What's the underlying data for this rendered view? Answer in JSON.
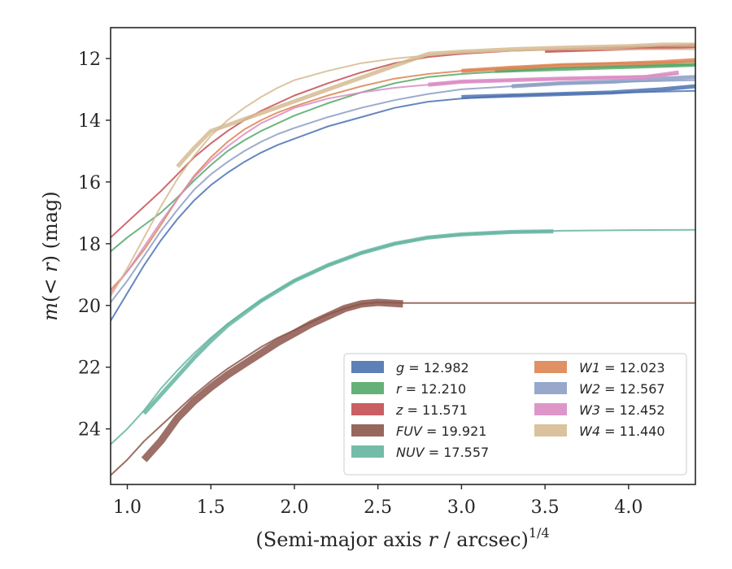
{
  "chart_data": {
    "type": "line",
    "xlabel": "(Semi-major axis r / arcsec)^1/4",
    "xlabel_parts": {
      "main": "(Semi-major axis ",
      "var": "r",
      "rest": " / arcsec)",
      "sup": "1/4"
    },
    "ylabel": "m(< r) (mag)",
    "ylabel_parts": {
      "m": "m",
      "open": "(",
      "lt": "< ",
      "r": "r",
      "close": ")",
      "unit": " (mag)"
    },
    "xlim": [
      0.9,
      4.4
    ],
    "ylim": [
      25.8,
      11.0
    ],
    "y_inverted": true,
    "xticks": [
      1.0,
      1.5,
      2.0,
      2.5,
      3.0,
      3.5,
      4.0
    ],
    "xtick_labels": [
      "1.0",
      "1.5",
      "2.0",
      "2.5",
      "3.0",
      "3.5",
      "4.0"
    ],
    "yticks": [
      12,
      14,
      16,
      18,
      20,
      22,
      24
    ],
    "ytick_labels": [
      "12",
      "14",
      "16",
      "18",
      "20",
      "22",
      "24"
    ],
    "grid": false,
    "legend_position": "lower-right",
    "series": [
      {
        "band": "g",
        "value": "12.982",
        "color": "#4c72b0",
        "points": [
          [
            0.9,
            20.5
          ],
          [
            1.0,
            19.6
          ],
          [
            1.1,
            18.7
          ],
          [
            1.2,
            17.9
          ],
          [
            1.3,
            17.2
          ],
          [
            1.4,
            16.6
          ],
          [
            1.5,
            16.1
          ],
          [
            1.6,
            15.7
          ],
          [
            1.7,
            15.35
          ],
          [
            1.8,
            15.05
          ],
          [
            1.9,
            14.8
          ],
          [
            2.0,
            14.6
          ],
          [
            2.2,
            14.2
          ],
          [
            2.4,
            13.9
          ],
          [
            2.6,
            13.6
          ],
          [
            2.8,
            13.4
          ],
          [
            3.0,
            13.3
          ],
          [
            3.3,
            13.2
          ],
          [
            3.6,
            13.15
          ],
          [
            4.0,
            13.1
          ],
          [
            4.4,
            13.05
          ]
        ],
        "band_points": [
          [
            3.0,
            13.25
          ],
          [
            3.3,
            13.2
          ],
          [
            3.6,
            13.15
          ],
          [
            3.9,
            13.1
          ],
          [
            4.2,
            13.0
          ],
          [
            4.4,
            12.9
          ]
        ]
      },
      {
        "band": "r",
        "value": "12.210",
        "color": "#55a868",
        "points": [
          [
            0.9,
            18.25
          ],
          [
            1.0,
            17.8
          ],
          [
            1.1,
            17.4
          ],
          [
            1.2,
            17.0
          ],
          [
            1.3,
            16.5
          ],
          [
            1.4,
            15.95
          ],
          [
            1.5,
            15.45
          ],
          [
            1.6,
            15.0
          ],
          [
            1.7,
            14.65
          ],
          [
            1.8,
            14.35
          ],
          [
            1.9,
            14.1
          ],
          [
            2.0,
            13.85
          ],
          [
            2.2,
            13.45
          ],
          [
            2.4,
            13.1
          ],
          [
            2.6,
            12.8
          ],
          [
            2.8,
            12.6
          ],
          [
            3.0,
            12.5
          ],
          [
            3.3,
            12.4
          ],
          [
            3.6,
            12.3
          ],
          [
            4.0,
            12.25
          ],
          [
            4.4,
            12.2
          ]
        ],
        "band_points": [
          [
            3.2,
            12.4
          ],
          [
            3.5,
            12.35
          ],
          [
            3.8,
            12.3
          ],
          [
            4.1,
            12.25
          ],
          [
            4.4,
            12.2
          ]
        ]
      },
      {
        "band": "z",
        "value": "11.571",
        "color": "#c44e52",
        "points": [
          [
            0.9,
            17.8
          ],
          [
            1.0,
            17.3
          ],
          [
            1.1,
            16.8
          ],
          [
            1.2,
            16.3
          ],
          [
            1.3,
            15.75
          ],
          [
            1.4,
            15.2
          ],
          [
            1.5,
            14.75
          ],
          [
            1.6,
            14.35
          ],
          [
            1.7,
            14.0
          ],
          [
            1.8,
            13.7
          ],
          [
            1.9,
            13.45
          ],
          [
            2.0,
            13.2
          ],
          [
            2.2,
            12.8
          ],
          [
            2.4,
            12.45
          ],
          [
            2.6,
            12.15
          ],
          [
            2.8,
            11.95
          ],
          [
            3.0,
            11.85
          ],
          [
            3.3,
            11.75
          ],
          [
            3.6,
            11.7
          ],
          [
            4.0,
            11.65
          ],
          [
            4.4,
            11.55
          ]
        ],
        "band_points": [
          [
            3.5,
            11.75
          ],
          [
            3.8,
            11.7
          ],
          [
            4.1,
            11.65
          ],
          [
            4.4,
            11.6
          ]
        ]
      },
      {
        "band": "FUV",
        "value": "19.921",
        "color": "#8c564b",
        "points": [
          [
            0.9,
            25.5
          ],
          [
            1.0,
            25.0
          ],
          [
            1.1,
            24.4
          ],
          [
            1.2,
            23.9
          ],
          [
            1.3,
            23.4
          ],
          [
            1.4,
            22.9
          ],
          [
            1.5,
            22.45
          ],
          [
            1.6,
            22.05
          ],
          [
            1.7,
            21.7
          ],
          [
            1.8,
            21.35
          ],
          [
            1.9,
            21.05
          ],
          [
            2.0,
            20.8
          ],
          [
            2.1,
            20.55
          ],
          [
            2.2,
            20.3
          ],
          [
            2.3,
            20.1
          ],
          [
            2.4,
            19.95
          ],
          [
            2.5,
            19.9
          ],
          [
            2.65,
            19.92
          ],
          [
            3.0,
            19.92
          ],
          [
            3.5,
            19.92
          ],
          [
            4.0,
            19.92
          ],
          [
            4.4,
            19.92
          ]
        ],
        "band_points": [
          [
            1.1,
            25.0
          ],
          [
            1.2,
            24.4
          ],
          [
            1.3,
            23.65
          ],
          [
            1.4,
            23.1
          ],
          [
            1.5,
            22.65
          ],
          [
            1.6,
            22.25
          ],
          [
            1.7,
            21.9
          ],
          [
            1.8,
            21.55
          ],
          [
            1.9,
            21.2
          ],
          [
            2.0,
            20.9
          ],
          [
            2.1,
            20.6
          ],
          [
            2.2,
            20.35
          ],
          [
            2.3,
            20.1
          ],
          [
            2.4,
            19.95
          ],
          [
            2.5,
            19.9
          ],
          [
            2.65,
            19.95
          ]
        ]
      },
      {
        "band": "NUV",
        "value": "17.557",
        "color": "#64b5a0",
        "points": [
          [
            0.9,
            24.5
          ],
          [
            1.0,
            24.0
          ],
          [
            1.1,
            23.4
          ],
          [
            1.2,
            22.7
          ],
          [
            1.3,
            22.1
          ],
          [
            1.4,
            21.55
          ],
          [
            1.5,
            21.05
          ],
          [
            1.6,
            20.6
          ],
          [
            1.7,
            20.2
          ],
          [
            1.8,
            19.85
          ],
          [
            1.9,
            19.5
          ],
          [
            2.0,
            19.2
          ],
          [
            2.2,
            18.7
          ],
          [
            2.4,
            18.3
          ],
          [
            2.6,
            18.0
          ],
          [
            2.8,
            17.8
          ],
          [
            3.0,
            17.7
          ],
          [
            3.3,
            17.62
          ],
          [
            3.6,
            17.58
          ],
          [
            4.0,
            17.56
          ],
          [
            4.4,
            17.55
          ]
        ],
        "band_points": [
          [
            1.1,
            23.5
          ],
          [
            1.2,
            22.9
          ],
          [
            1.3,
            22.3
          ],
          [
            1.4,
            21.7
          ],
          [
            1.5,
            21.15
          ],
          [
            1.6,
            20.65
          ],
          [
            1.8,
            19.85
          ],
          [
            2.0,
            19.2
          ],
          [
            2.2,
            18.7
          ],
          [
            2.4,
            18.3
          ],
          [
            2.6,
            18.0
          ],
          [
            2.8,
            17.8
          ],
          [
            3.0,
            17.7
          ],
          [
            3.3,
            17.62
          ],
          [
            3.55,
            17.6
          ]
        ]
      },
      {
        "band": "W1",
        "value": "12.023",
        "color": "#dd8452",
        "points": [
          [
            0.9,
            19.5
          ],
          [
            1.0,
            18.9
          ],
          [
            1.1,
            18.2
          ],
          [
            1.2,
            17.4
          ],
          [
            1.3,
            16.55
          ],
          [
            1.4,
            15.8
          ],
          [
            1.5,
            15.2
          ],
          [
            1.6,
            14.7
          ],
          [
            1.7,
            14.3
          ],
          [
            1.8,
            14.0
          ],
          [
            1.9,
            13.75
          ],
          [
            2.0,
            13.55
          ],
          [
            2.2,
            13.2
          ],
          [
            2.4,
            12.9
          ],
          [
            2.6,
            12.65
          ],
          [
            2.8,
            12.5
          ],
          [
            3.0,
            12.4
          ],
          [
            3.3,
            12.3
          ],
          [
            3.6,
            12.2
          ],
          [
            4.0,
            12.15
          ],
          [
            4.4,
            12.1
          ]
        ],
        "band_points": [
          [
            3.0,
            12.4
          ],
          [
            3.3,
            12.3
          ],
          [
            3.6,
            12.22
          ],
          [
            3.9,
            12.18
          ],
          [
            4.2,
            12.12
          ],
          [
            4.4,
            12.05
          ]
        ]
      },
      {
        "band": "W2",
        "value": "12.567",
        "color": "#8c9ec4",
        "points": [
          [
            0.9,
            19.9
          ],
          [
            1.0,
            19.2
          ],
          [
            1.1,
            18.4
          ],
          [
            1.2,
            17.6
          ],
          [
            1.3,
            16.9
          ],
          [
            1.4,
            16.25
          ],
          [
            1.5,
            15.75
          ],
          [
            1.6,
            15.35
          ],
          [
            1.7,
            15.0
          ],
          [
            1.8,
            14.7
          ],
          [
            1.9,
            14.45
          ],
          [
            2.0,
            14.25
          ],
          [
            2.2,
            13.9
          ],
          [
            2.4,
            13.6
          ],
          [
            2.6,
            13.35
          ],
          [
            2.8,
            13.15
          ],
          [
            3.0,
            13.0
          ],
          [
            3.3,
            12.9
          ],
          [
            3.6,
            12.8
          ],
          [
            4.0,
            12.75
          ],
          [
            4.4,
            12.7
          ]
        ],
        "band_points": [
          [
            3.3,
            12.9
          ],
          [
            3.6,
            12.8
          ],
          [
            3.9,
            12.75
          ],
          [
            4.2,
            12.65
          ],
          [
            4.4,
            12.6
          ]
        ]
      },
      {
        "band": "W3",
        "value": "12.452",
        "color": "#da8bc3",
        "points": [
          [
            0.9,
            19.6
          ],
          [
            1.0,
            18.9
          ],
          [
            1.1,
            18.1
          ],
          [
            1.2,
            17.3
          ],
          [
            1.3,
            16.55
          ],
          [
            1.4,
            15.85
          ],
          [
            1.5,
            15.3
          ],
          [
            1.6,
            14.85
          ],
          [
            1.7,
            14.45
          ],
          [
            1.8,
            14.1
          ],
          [
            1.9,
            13.85
          ],
          [
            2.0,
            13.6
          ],
          [
            2.2,
            13.3
          ],
          [
            2.4,
            13.1
          ],
          [
            2.6,
            12.95
          ],
          [
            2.8,
            12.85
          ],
          [
            3.0,
            12.75
          ],
          [
            3.3,
            12.7
          ],
          [
            3.6,
            12.65
          ],
          [
            4.0,
            12.6
          ],
          [
            4.3,
            12.5
          ]
        ],
        "band_points": [
          [
            2.8,
            12.85
          ],
          [
            3.0,
            12.75
          ],
          [
            3.3,
            12.7
          ],
          [
            3.6,
            12.65
          ],
          [
            3.9,
            12.62
          ],
          [
            4.1,
            12.6
          ],
          [
            4.3,
            12.45
          ]
        ]
      },
      {
        "band": "W4",
        "value": "11.440",
        "color": "#d5bb92",
        "points": [
          [
            0.9,
            19.7
          ],
          [
            1.0,
            18.8
          ],
          [
            1.1,
            17.8
          ],
          [
            1.2,
            16.8
          ],
          [
            1.3,
            15.9
          ],
          [
            1.4,
            15.15
          ],
          [
            1.5,
            14.5
          ],
          [
            1.6,
            14.0
          ],
          [
            1.7,
            13.6
          ],
          [
            1.8,
            13.25
          ],
          [
            1.9,
            12.95
          ],
          [
            2.0,
            12.7
          ],
          [
            2.2,
            12.4
          ],
          [
            2.4,
            12.15
          ],
          [
            2.6,
            12.0
          ],
          [
            2.8,
            11.9
          ],
          [
            3.0,
            11.8
          ],
          [
            3.3,
            11.75
          ],
          [
            3.6,
            11.7
          ],
          [
            4.0,
            11.7
          ],
          [
            4.4,
            11.7
          ]
        ],
        "band_points": [
          [
            1.3,
            15.5
          ],
          [
            1.4,
            14.9
          ],
          [
            1.5,
            14.35
          ],
          [
            2.8,
            11.85
          ],
          [
            3.0,
            11.78
          ],
          [
            3.3,
            11.7
          ],
          [
            3.6,
            11.65
          ],
          [
            4.0,
            11.6
          ],
          [
            4.2,
            11.55
          ],
          [
            4.4,
            11.55
          ]
        ]
      }
    ]
  }
}
